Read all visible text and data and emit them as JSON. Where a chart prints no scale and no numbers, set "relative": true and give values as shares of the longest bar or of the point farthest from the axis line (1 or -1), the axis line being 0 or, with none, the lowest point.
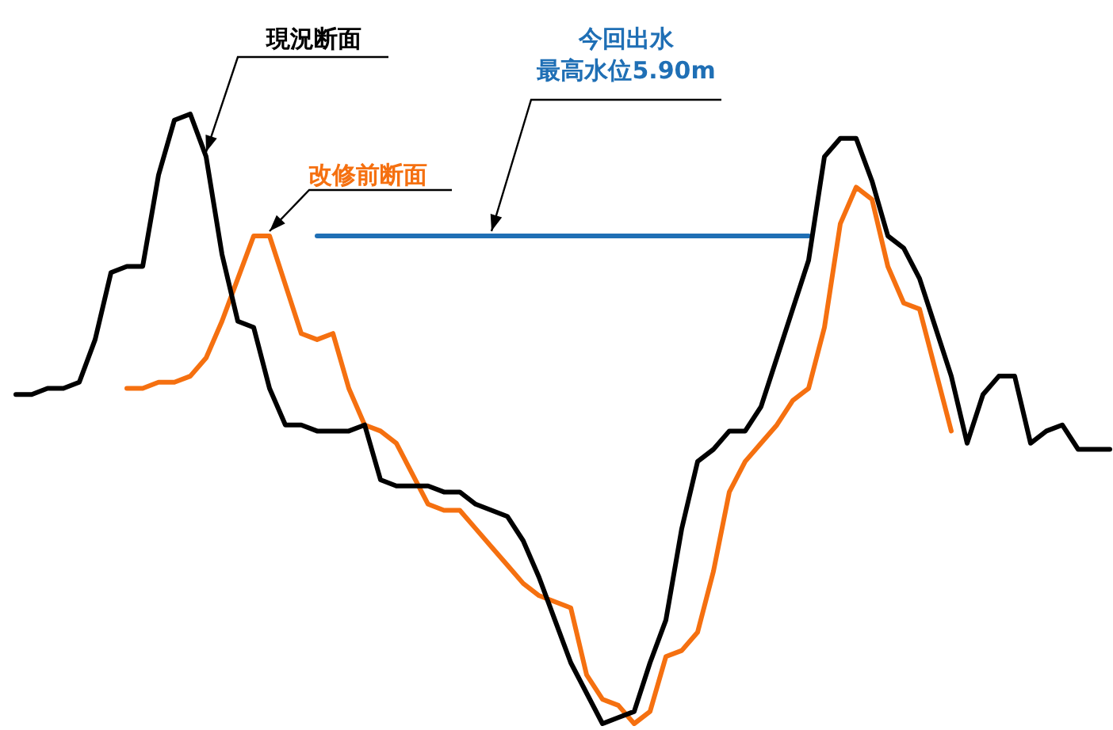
{
  "chart_data": {
    "type": "line",
    "relative": true,
    "legend": false,
    "marker": "none",
    "line_style": "solid",
    "tick_labels": false,
    "categories": [
      null,
      null,
      null,
      null,
      null,
      null,
      null,
      null,
      null,
      null,
      null,
      null,
      null,
      null,
      null,
      null,
      null,
      null,
      null,
      null,
      null,
      null,
      null,
      null,
      null,
      null,
      null,
      null,
      null,
      null,
      null,
      null,
      null,
      null,
      null,
      null,
      null,
      null,
      null,
      null,
      null,
      null,
      null,
      null,
      null,
      null,
      null,
      null,
      null,
      null,
      null,
      null,
      null,
      null,
      null,
      null,
      null,
      null,
      null,
      null,
      null,
      null,
      null,
      null,
      null,
      null,
      null,
      null,
      null,
      null
    ],
    "series": [
      {
        "name": "現況断面",
        "color": "#000000",
        "values": [
          0.54,
          0.54,
          0.55,
          0.55,
          0.56,
          0.63,
          0.74,
          0.75,
          0.75,
          0.9,
          0.99,
          1.0,
          0.93,
          0.77,
          0.66,
          0.65,
          0.55,
          0.49,
          0.49,
          0.48,
          0.48,
          0.48,
          0.49,
          0.4,
          0.39,
          0.39,
          0.39,
          0.38,
          0.38,
          0.36,
          0.35,
          0.34,
          0.3,
          0.24,
          0.17,
          0.1,
          0.05,
          0,
          0.01,
          0.02,
          0.1,
          0.17,
          0.32,
          0.43,
          0.45,
          0.48,
          0.48,
          0.52,
          0.6,
          0.68,
          0.76,
          0.93,
          0.96,
          0.96,
          0.89,
          0.8,
          0.78,
          0.73,
          0.65,
          0.57,
          0.46,
          0.54,
          0.57,
          0.57,
          0.46,
          0.48,
          0.49,
          0.45,
          0.45,
          0.45
        ]
      },
      {
        "name": "改修前断面",
        "color": "#f57010",
        "values": [
          null,
          null,
          null,
          null,
          null,
          null,
          null,
          0.55,
          0.55,
          0.56,
          0.56,
          0.57,
          0.6,
          0.66,
          0.73,
          0.8,
          0.8,
          0.72,
          0.64,
          0.63,
          0.64,
          0.55,
          0.49,
          0.48,
          0.46,
          0.41,
          0.36,
          0.35,
          0.35,
          0.32,
          0.29,
          0.26,
          0.23,
          0.21,
          0.2,
          0.19,
          0.08,
          0.04,
          0.03,
          0,
          0.02,
          0.11,
          0.12,
          0.15,
          0.25,
          0.38,
          0.43,
          0.46,
          0.49,
          0.53,
          0.55,
          0.65,
          0.82,
          0.88,
          0.86,
          0.75,
          0.69,
          0.68,
          0.58,
          0.48,
          null,
          null,
          null,
          null,
          null,
          null,
          null,
          null,
          null,
          null
        ]
      },
      {
        "name": "今回出水最高水位5.90m",
        "color": "#1f6fb5",
        "values": [
          null,
          null,
          null,
          null,
          null,
          null,
          null,
          null,
          null,
          null,
          null,
          null,
          null,
          null,
          null,
          null,
          null,
          null,
          null,
          0.8,
          0.8,
          0.8,
          0.8,
          0.8,
          0.8,
          0.8,
          0.8,
          0.8,
          0.8,
          0.8,
          0.8,
          0.8,
          0.8,
          0.8,
          0.8,
          0.8,
          0.8,
          0.8,
          0.8,
          0.8,
          0.8,
          0.8,
          0.8,
          0.8,
          0.8,
          0.8,
          0.8,
          0.8,
          0.8,
          0.8,
          0.8,
          null,
          null,
          null,
          null,
          null,
          null,
          null,
          null,
          null,
          null,
          null,
          null,
          null,
          null,
          null,
          null,
          null,
          null,
          null
        ]
      }
    ]
  }
}
